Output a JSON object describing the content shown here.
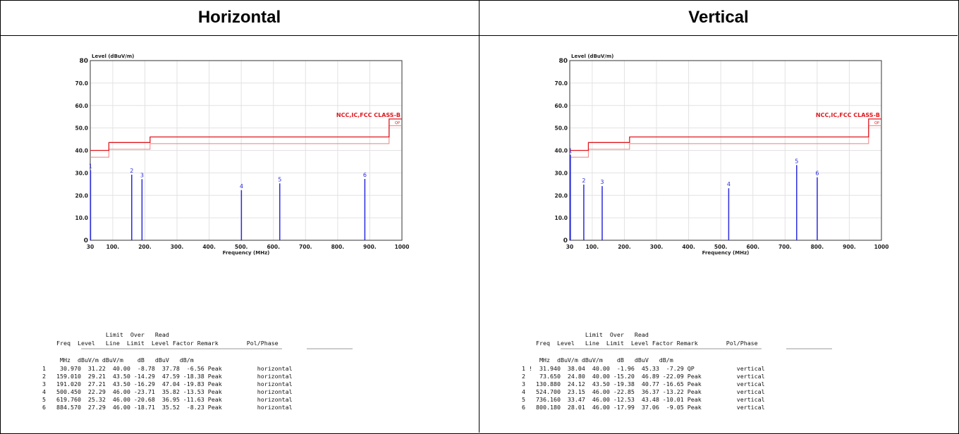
{
  "panels": {
    "left": {
      "title": "Horizontal"
    },
    "right": {
      "title": "Vertical"
    }
  },
  "chart_data": [
    {
      "type": "bar",
      "panel": "Horizontal",
      "ylabel": "Level (dBuV/m)",
      "xlabel": "Frequency (MHz)",
      "xlim": [
        30,
        1000
      ],
      "ylim": [
        0,
        80
      ],
      "x_ticks": [
        30,
        100,
        200,
        300,
        400,
        500,
        600,
        700,
        800,
        900,
        1000
      ],
      "x_tick_labels": [
        "30",
        "100.",
        "200.",
        "300.",
        "400.",
        "500.",
        "600.",
        "700.",
        "800.",
        "900.",
        "1000"
      ],
      "y_ticks": [
        0,
        10,
        20,
        30,
        40,
        50,
        60,
        70,
        80
      ],
      "y_tick_labels": [
        "0",
        "10.0",
        "20.0",
        "30.0",
        "40.0",
        "50.0",
        "60.0",
        "70.0",
        "80"
      ],
      "limit_label": "NCC,IC,FCC CLASS-B",
      "limit_small_label": "QP",
      "limit_line": [
        [
          30,
          40
        ],
        [
          88,
          40
        ],
        [
          88,
          43.5
        ],
        [
          216,
          43.5
        ],
        [
          216,
          46
        ],
        [
          960,
          46
        ],
        [
          960,
          54
        ],
        [
          1000,
          54
        ]
      ],
      "margin_line": [
        [
          30,
          37
        ],
        [
          88,
          37
        ],
        [
          88,
          40.5
        ],
        [
          216,
          40.5
        ],
        [
          216,
          43
        ],
        [
          960,
          43
        ],
        [
          960,
          51
        ],
        [
          1000,
          51
        ]
      ],
      "points": [
        {
          "id": "1",
          "x": 30.97,
          "y": 31.22
        },
        {
          "id": "2",
          "x": 159.01,
          "y": 29.21
        },
        {
          "id": "3",
          "x": 191.02,
          "y": 27.21
        },
        {
          "id": "4",
          "x": 500.45,
          "y": 22.29
        },
        {
          "id": "5",
          "x": 619.76,
          "y": 25.32
        },
        {
          "id": "6",
          "x": 884.57,
          "y": 27.29
        }
      ],
      "colors": {
        "limit": "#e0181f",
        "margin": "#ee8080",
        "peak": "#2a2ae0"
      },
      "table": {
        "header1": "                  Limit  Over   Read",
        "header2": "    Freq  Level   Line  Limit  Level Factor Remark        Pol/Phase",
        "units": "     MHz  dBuV/m dBuV/m    dB   dBuV   dB/m",
        "rows": [
          "1    30.970  31.22  40.00  -8.78  37.78  -6.56 Peak          horizontal",
          "2   159.010  29.21  43.50 -14.29  47.59 -18.38 Peak          horizontal",
          "3   191.020  27.21  43.50 -16.29  47.04 -19.83 Peak          horizontal",
          "4   500.450  22.29  46.00 -23.71  35.82 -13.53 Peak          horizontal",
          "5   619.760  25.32  46.00 -20.68  36.95 -11.63 Peak          horizontal",
          "6   884.570  27.29  46.00 -18.71  35.52  -8.23 Peak          horizontal"
        ]
      }
    },
    {
      "type": "bar",
      "panel": "Vertical",
      "ylabel": "Level (dBuV/m)",
      "xlabel": "Frequency (MHz)",
      "xlim": [
        30,
        1000
      ],
      "ylim": [
        0,
        80
      ],
      "x_ticks": [
        30,
        100,
        200,
        300,
        400,
        500,
        600,
        700,
        800,
        900,
        1000
      ],
      "x_tick_labels": [
        "30",
        "100.",
        "200.",
        "300.",
        "400.",
        "500.",
        "600.",
        "700.",
        "800.",
        "900.",
        "1000"
      ],
      "y_ticks": [
        0,
        10,
        20,
        30,
        40,
        50,
        60,
        70,
        80
      ],
      "y_tick_labels": [
        "0",
        "10.0",
        "20.0",
        "30.0",
        "40.0",
        "50.0",
        "60.0",
        "70.0",
        "80"
      ],
      "limit_label": "NCC,IC,FCC CLASS-B",
      "limit_small_label": "QP",
      "limit_line": [
        [
          30,
          40
        ],
        [
          88,
          40
        ],
        [
          88,
          43.5
        ],
        [
          216,
          43.5
        ],
        [
          216,
          46
        ],
        [
          960,
          46
        ],
        [
          960,
          54
        ],
        [
          1000,
          54
        ]
      ],
      "margin_line": [
        [
          30,
          37
        ],
        [
          88,
          37
        ],
        [
          88,
          40.5
        ],
        [
          216,
          40.5
        ],
        [
          216,
          43
        ],
        [
          960,
          43
        ],
        [
          960,
          51
        ],
        [
          1000,
          51
        ]
      ],
      "points": [
        {
          "id": "1",
          "x": 31.94,
          "y": 38.04
        },
        {
          "id": "2",
          "x": 73.65,
          "y": 24.8
        },
        {
          "id": "3",
          "x": 130.88,
          "y": 24.12
        },
        {
          "id": "4",
          "x": 524.7,
          "y": 23.15
        },
        {
          "id": "5",
          "x": 736.16,
          "y": 33.47
        },
        {
          "id": "6",
          "x": 800.18,
          "y": 28.01
        }
      ],
      "colors": {
        "limit": "#e0181f",
        "margin": "#ee8080",
        "peak": "#2a2ae0"
      },
      "table": {
        "header1": "                  Limit  Over   Read",
        "header2": "    Freq  Level   Line  Limit  Level Factor Remark        Pol/Phase",
        "units": "     MHz  dBuV/m dBuV/m    dB   dBuV   dB/m",
        "rows": [
          "1 !  31.940  38.04  40.00  -1.96  45.33  -7.29 QP            vertical",
          "2    73.650  24.80  40.00 -15.20  46.89 -22.09 Peak          vertical",
          "3   130.880  24.12  43.50 -19.38  40.77 -16.65 Peak          vertical",
          "4   524.700  23.15  46.00 -22.85  36.37 -13.22 Peak          vertical",
          "5   736.160  33.47  46.00 -12.53  43.48 -10.01 Peak          vertical",
          "6   800.180  28.01  46.00 -17.99  37.06  -9.05 Peak          vertical"
        ]
      }
    }
  ]
}
